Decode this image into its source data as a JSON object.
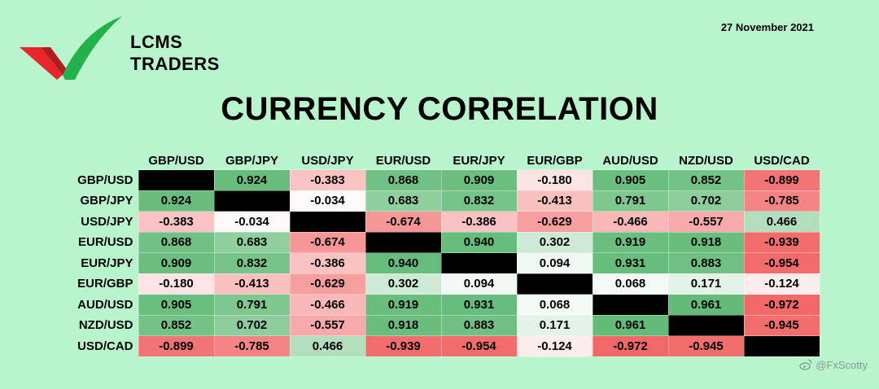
{
  "header": {
    "brand_line1": "LCMS",
    "brand_line2": "TRADERS",
    "date": "27 November 2021",
    "title": "CURRENCY CORRELATION"
  },
  "watermark": {
    "handle": "@FxScotty",
    "icon": "weibo-icon"
  },
  "colors": {
    "background": "#b9f5cc",
    "positive": "#5cb871",
    "negative": "#f26464",
    "neutral": "#ffffff",
    "diagonal": "#000000",
    "logo_green": "#22b24c",
    "logo_red": "#e8262c"
  },
  "chart_data": {
    "type": "heatmap",
    "title": "CURRENCY CORRELATION",
    "columns": [
      "GBP/USD",
      "GBP/JPY",
      "USD/JPY",
      "EUR/USD",
      "EUR/JPY",
      "EUR/GBP",
      "AUD/USD",
      "NZD/USD",
      "USD/CAD"
    ],
    "rows": [
      "GBP/USD",
      "GBP/JPY",
      "USD/JPY",
      "EUR/USD",
      "EUR/JPY",
      "EUR/GBP",
      "AUD/USD",
      "NZD/USD",
      "USD/CAD"
    ],
    "values": [
      [
        null,
        "0.924",
        "-0.383",
        "0.868",
        "0.909",
        "-0.180",
        "0.905",
        "0.852",
        "-0.899"
      ],
      [
        "0.924",
        null,
        "-0.034",
        "0.683",
        "0.832",
        "-0.413",
        "0.791",
        "0.702",
        "-0.785"
      ],
      [
        "-0.383",
        "-0.034",
        null,
        "-0.674",
        "-0.386",
        "-0.629",
        "-0.466",
        "-0.557",
        "0.466"
      ],
      [
        "0.868",
        "0.683",
        "-0.674",
        null,
        "0.940",
        "0.302",
        "0.919",
        "0.918",
        "-0.939"
      ],
      [
        "0.909",
        "0.832",
        "-0.386",
        "0.940",
        null,
        "0.094",
        "0.931",
        "0.883",
        "-0.954"
      ],
      [
        "-0.180",
        "-0.413",
        "-0.629",
        "0.302",
        "0.094",
        null,
        "0.068",
        "0.171",
        "-0.124"
      ],
      [
        "0.905",
        "0.791",
        "-0.466",
        "0.919",
        "0.931",
        "0.068",
        null,
        "0.961",
        "-0.972"
      ],
      [
        "0.852",
        "0.702",
        "-0.557",
        "0.918",
        "0.883",
        "0.171",
        "0.961",
        null,
        "-0.945"
      ],
      [
        "-0.899",
        "-0.785",
        "0.466",
        "-0.939",
        "-0.954",
        "-0.124",
        "-0.972",
        "-0.945",
        null
      ]
    ],
    "range": [
      -1,
      1
    ]
  }
}
